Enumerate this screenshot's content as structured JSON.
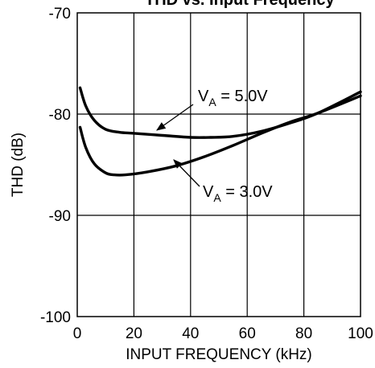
{
  "chart_data": {
    "type": "line",
    "title": "THD vs. Input Frequency",
    "xlabel": "INPUT FREQUENCY (kHz)",
    "ylabel": "THD (dB)",
    "xlim": [
      0,
      100
    ],
    "ylim": [
      -100,
      -70
    ],
    "x_ticks": [
      0,
      20,
      40,
      60,
      80,
      100
    ],
    "y_ticks": [
      -100,
      -90,
      -80,
      -70
    ],
    "x_tick_labels": [
      "0",
      "20",
      "40",
      "60",
      "80",
      "100"
    ],
    "y_tick_labels": [
      "-100",
      "-90",
      "-80",
      "-70"
    ],
    "grid": true,
    "series": [
      {
        "name": "V_A = 5.0V",
        "label_main": "V",
        "label_sub": "A",
        "label_rest": " = 5.0V",
        "x": [
          1,
          3,
          6,
          10,
          15,
          20,
          30,
          40,
          47,
          55,
          65,
          75,
          85,
          100
        ],
        "y": [
          -77.4,
          -79.2,
          -80.6,
          -81.5,
          -81.8,
          -81.9,
          -82.1,
          -82.3,
          -82.3,
          -82.2,
          -81.7,
          -80.9,
          -79.9,
          -77.8
        ]
      },
      {
        "name": "V_A = 3.0V",
        "label_main": "V",
        "label_sub": "A",
        "label_rest": " = 3.0V",
        "x": [
          1,
          3,
          6,
          10,
          13,
          17,
          25,
          35,
          45,
          55,
          65,
          75,
          85,
          100
        ],
        "y": [
          -81.3,
          -83.3,
          -84.9,
          -85.8,
          -86.0,
          -86.0,
          -85.7,
          -85.1,
          -84.2,
          -83.1,
          -81.9,
          -80.8,
          -79.9,
          -78.2
        ]
      }
    ]
  }
}
